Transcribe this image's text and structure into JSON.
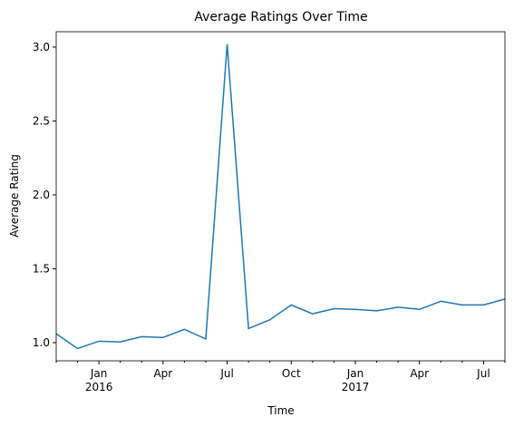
{
  "chart_data": {
    "type": "line",
    "title": "Average Ratings Over Time",
    "xlabel": "Time",
    "ylabel": "Average Rating",
    "x": [
      "2015-11",
      "2015-12",
      "2016-01",
      "2016-02",
      "2016-03",
      "2016-04",
      "2016-05",
      "2016-06",
      "2016-07",
      "2016-08",
      "2016-09",
      "2016-10",
      "2016-11",
      "2016-12",
      "2017-01",
      "2017-02",
      "2017-03",
      "2017-04",
      "2017-05",
      "2017-06",
      "2017-07",
      "2017-08"
    ],
    "series": [
      {
        "name": "Average Rating",
        "color": "#1f77b4",
        "values": [
          1.06,
          0.96,
          1.01,
          1.005,
          1.04,
          1.035,
          1.09,
          1.025,
          3.02,
          1.095,
          1.155,
          1.255,
          1.195,
          1.23,
          1.225,
          1.215,
          1.24,
          1.225,
          1.28,
          1.255,
          1.255,
          1.295
        ]
      }
    ],
    "xlim": [
      "2015-11",
      "2017-08"
    ],
    "xticks": [
      {
        "value": "2016-01",
        "label": "Jan",
        "year": "2016"
      },
      {
        "value": "2016-04",
        "label": "Apr"
      },
      {
        "value": "2016-07",
        "label": "Jul"
      },
      {
        "value": "2016-10",
        "label": "Oct"
      },
      {
        "value": "2017-01",
        "label": "Jan",
        "year": "2017"
      },
      {
        "value": "2017-04",
        "label": "Apr"
      },
      {
        "value": "2017-07",
        "label": "Jul"
      }
    ],
    "ylim": [
      0.877,
      3.104
    ],
    "yticks": [
      {
        "value": 1,
        "label": "1.0"
      },
      {
        "value": 1.5,
        "label": "1.5"
      },
      {
        "value": 2,
        "label": "2.0"
      },
      {
        "value": 2.5,
        "label": "2.5"
      },
      {
        "value": 3,
        "label": "3.0"
      }
    ]
  }
}
